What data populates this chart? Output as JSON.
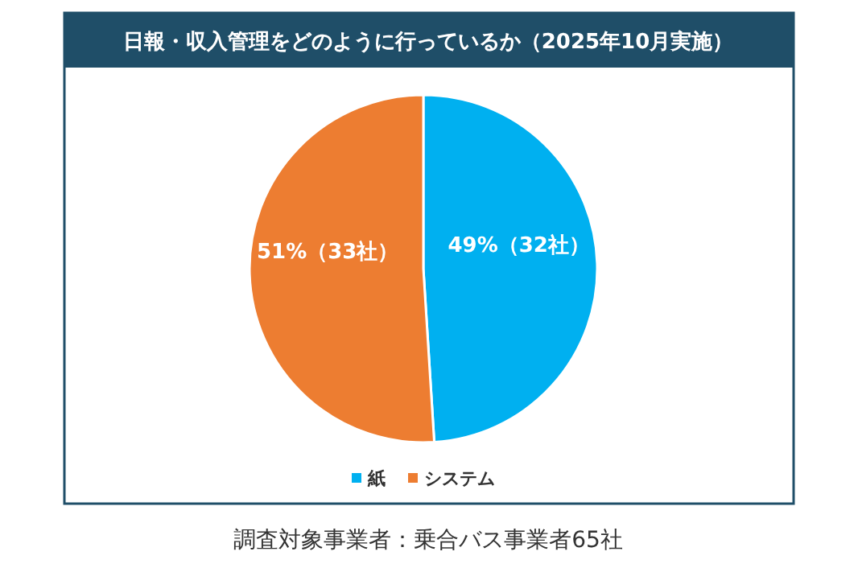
{
  "chart_data": {
    "type": "pie",
    "title": "日報・収入管理をどのように行っているか（2025年10月実施）",
    "categories": [
      "紙",
      "システム"
    ],
    "values": [
      49,
      51
    ],
    "colors": [
      "#00b0f0",
      "#ed7d31"
    ],
    "value_labels": [
      "49%（32社）",
      "51%（33社）"
    ],
    "legend": "bottom",
    "annotations": [
      "調査対象事業者：乗合バス事業者65社"
    ]
  }
}
